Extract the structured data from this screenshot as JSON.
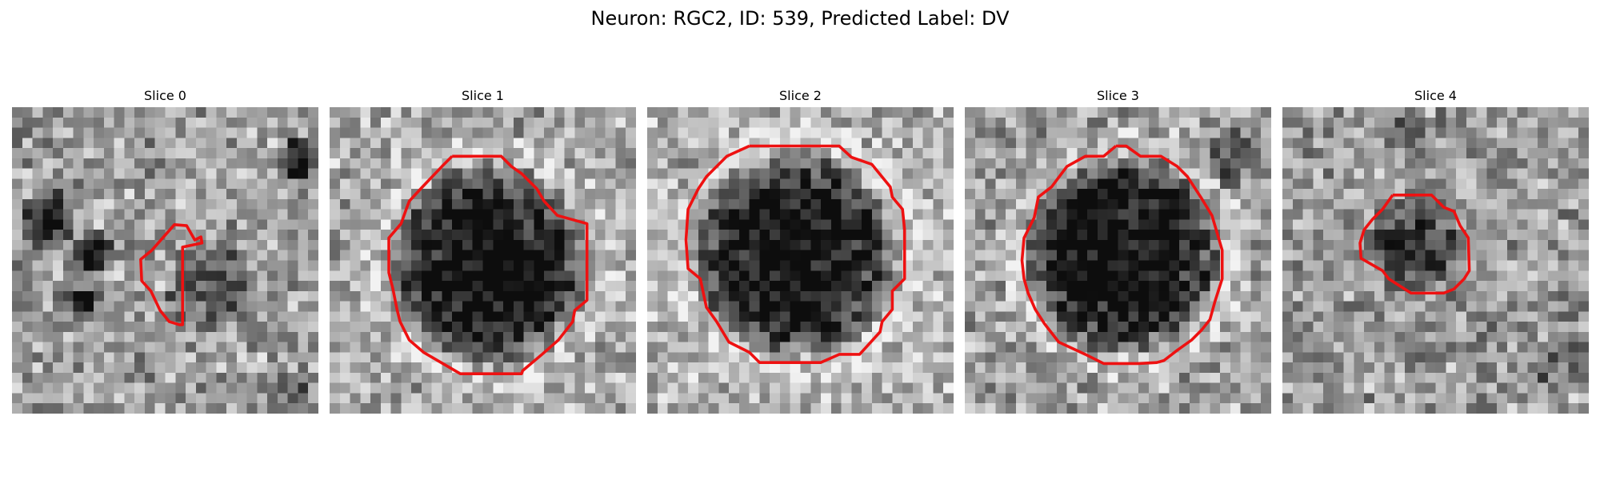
{
  "figure": {
    "title": "Neuron: RGC2, ID: 539, Predicted Label: DV",
    "contour_color": "#ee1111"
  },
  "panels": [
    {
      "title": "Slice 0",
      "seed": 11,
      "contour_shape": "small-irregular-blob"
    },
    {
      "title": "Slice 1",
      "seed": 27,
      "contour_shape": "large-octagon"
    },
    {
      "title": "Slice 2",
      "seed": 43,
      "contour_shape": "large-octagon"
    },
    {
      "title": "Slice 3",
      "seed": 59,
      "contour_shape": "large-octagon"
    },
    {
      "title": "Slice 4",
      "seed": 71,
      "contour_shape": "small-octagon"
    }
  ]
}
